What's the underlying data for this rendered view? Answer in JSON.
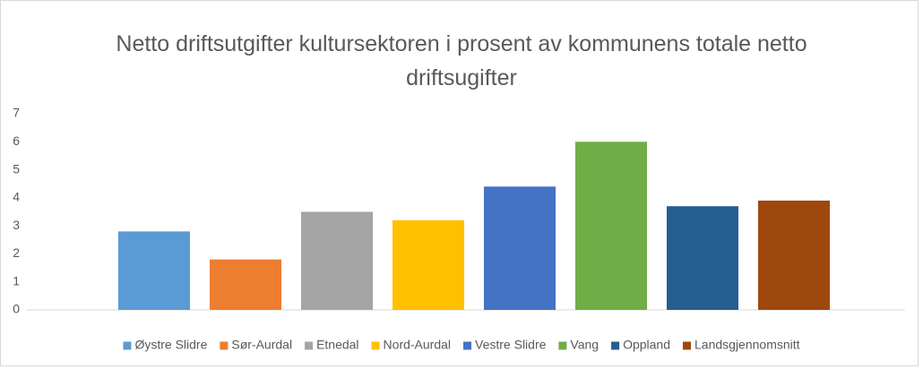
{
  "chart_data": {
    "type": "bar",
    "title": "Netto driftsutgifter kultursektoren i prosent av kommunens totale netto driftsugifter",
    "series": [
      {
        "name": "Øystre Slidre",
        "color": "#5b9bd5",
        "values": [
          2.8
        ]
      },
      {
        "name": "Sør-Aurdal",
        "color": "#ed7d31",
        "values": [
          1.8
        ]
      },
      {
        "name": "Etnedal",
        "color": "#a5a5a5",
        "values": [
          3.5
        ]
      },
      {
        "name": "Nord-Aurdal",
        "color": "#ffc000",
        "values": [
          3.2
        ]
      },
      {
        "name": "Vestre Slidre",
        "color": "#4472c4",
        "values": [
          4.4
        ]
      },
      {
        "name": "Vang",
        "color": "#70ad47",
        "values": [
          6.0
        ]
      },
      {
        "name": "Oppland",
        "color": "#255e91",
        "values": [
          3.7
        ]
      },
      {
        "name": "Landsgjennomsnitt",
        "color": "#9e480e",
        "values": [
          3.9
        ]
      }
    ],
    "ylim": [
      0,
      7
    ],
    "yticks": [
      0,
      1,
      2,
      3,
      4,
      5,
      6,
      7
    ],
    "grid": false,
    "legend": "bottom"
  }
}
